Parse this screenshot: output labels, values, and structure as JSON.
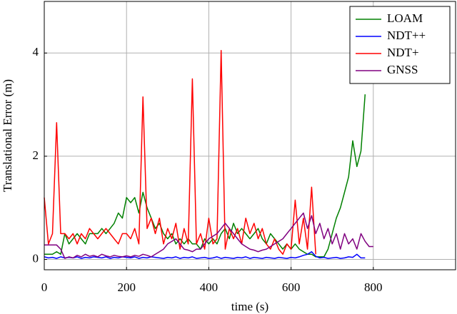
{
  "chart_data": {
    "type": "line",
    "x_label": "time (s)",
    "y_label": "Translational Error (m)",
    "x": [
      0,
      10,
      20,
      30,
      40,
      50,
      60,
      70,
      80,
      90,
      100,
      110,
      120,
      130,
      140,
      150,
      160,
      170,
      180,
      190,
      200,
      210,
      220,
      230,
      240,
      250,
      260,
      270,
      280,
      290,
      300,
      310,
      320,
      330,
      340,
      350,
      360,
      370,
      380,
      390,
      400,
      410,
      420,
      430,
      440,
      450,
      460,
      470,
      480,
      490,
      500,
      510,
      520,
      530,
      540,
      550,
      560,
      570,
      580,
      590,
      600,
      610,
      620,
      630,
      640,
      650,
      660,
      670,
      680,
      690,
      700,
      710,
      720,
      730,
      740,
      750,
      760,
      770,
      780,
      790,
      800
    ],
    "series": [
      {
        "name": "LOAM",
        "color": "#008000",
        "values": [
          0.1,
          0.1,
          0.1,
          0.15,
          0.1,
          0.5,
          0.3,
          0.4,
          0.5,
          0.4,
          0.3,
          0.5,
          0.5,
          0.5,
          0.6,
          0.5,
          0.6,
          0.7,
          0.9,
          0.8,
          1.2,
          1.1,
          1.2,
          0.9,
          1.3,
          1.0,
          0.8,
          0.6,
          0.7,
          0.5,
          0.4,
          0.5,
          0.3,
          0.4,
          0.3,
          0.4,
          0.3,
          0.3,
          0.2,
          0.4,
          0.3,
          0.4,
          0.3,
          0.5,
          0.6,
          0.4,
          0.7,
          0.5,
          0.6,
          0.5,
          0.4,
          0.5,
          0.6,
          0.4,
          0.3,
          0.5,
          0.4,
          0.3,
          0.2,
          0.3,
          0.2,
          0.3,
          0.2,
          0.15,
          0.1,
          0.1,
          0.05,
          0.05,
          0.05,
          0.2,
          0.5,
          0.8,
          1.0,
          1.3,
          1.6,
          2.3,
          1.8,
          2.1,
          3.2,
          null,
          null
        ]
      },
      {
        "name": "NDT++",
        "color": "#0000ff",
        "values": [
          0.05,
          0.03,
          0.04,
          0.02,
          0.05,
          0.03,
          0.04,
          0.03,
          0.05,
          0.02,
          0.04,
          0.03,
          0.05,
          0.04,
          0.03,
          0.05,
          0.02,
          0.04,
          0.03,
          0.05,
          0.04,
          0.03,
          0.05,
          0.02,
          0.04,
          0.03,
          0.05,
          0.04,
          0.03,
          0.02,
          0.04,
          0.03,
          0.05,
          0.02,
          0.04,
          0.03,
          0.05,
          0.02,
          0.03,
          0.04,
          0.02,
          0.03,
          0.05,
          0.02,
          0.04,
          0.03,
          0.02,
          0.04,
          0.03,
          0.05,
          0.02,
          0.04,
          0.03,
          0.02,
          0.04,
          0.03,
          0.02,
          0.04,
          0.03,
          0.02,
          0.04,
          0.03,
          0.05,
          0.08,
          0.1,
          0.15,
          0.06,
          0.03,
          0.04,
          0.02,
          0.03,
          0.04,
          0.02,
          0.03,
          0.05,
          0.04,
          0.1,
          0.03,
          0.03,
          null,
          null
        ]
      },
      {
        "name": "NDT+",
        "color": "#ff0000",
        "values": [
          1.2,
          0.3,
          0.5,
          2.65,
          0.5,
          0.5,
          0.4,
          0.5,
          0.3,
          0.5,
          0.4,
          0.6,
          0.5,
          0.4,
          0.5,
          0.6,
          0.5,
          0.4,
          0.3,
          0.5,
          0.5,
          0.4,
          0.6,
          0.3,
          3.15,
          0.6,
          0.8,
          0.5,
          0.8,
          0.3,
          0.6,
          0.4,
          0.7,
          0.2,
          0.6,
          0.3,
          3.5,
          0.3,
          0.5,
          0.2,
          0.8,
          0.3,
          0.4,
          4.05,
          0.2,
          0.6,
          0.4,
          0.6,
          0.3,
          0.8,
          0.5,
          0.7,
          0.4,
          0.6,
          0.3,
          0.2,
          0.4,
          0.2,
          0.1,
          0.3,
          0.2,
          1.15,
          0.3,
          0.8,
          0.2,
          1.4,
          0.1,
          null,
          null,
          null,
          null,
          null,
          null,
          null,
          null,
          null,
          null,
          null,
          null,
          null,
          null
        ]
      },
      {
        "name": "GNSS",
        "color": "#800080",
        "values": [
          0.28,
          0.28,
          0.28,
          0.28,
          0.2,
          0.02,
          0.05,
          0.03,
          0.08,
          0.05,
          0.1,
          0.06,
          0.08,
          0.05,
          0.1,
          0.07,
          0.05,
          0.08,
          0.06,
          0.05,
          0.07,
          0.05,
          0.08,
          0.06,
          0.1,
          0.08,
          0.05,
          0.1,
          0.15,
          0.2,
          0.3,
          0.35,
          0.4,
          0.3,
          0.2,
          0.18,
          0.15,
          0.2,
          0.2,
          0.3,
          0.4,
          0.45,
          0.5,
          0.6,
          0.7,
          0.6,
          0.5,
          0.4,
          0.3,
          0.25,
          0.2,
          0.18,
          0.15,
          0.18,
          0.2,
          0.25,
          0.3,
          0.35,
          0.4,
          0.5,
          0.6,
          0.7,
          0.8,
          0.9,
          0.6,
          0.85,
          0.5,
          0.7,
          0.4,
          0.6,
          0.3,
          0.5,
          0.2,
          0.5,
          0.3,
          0.4,
          0.2,
          0.5,
          0.35,
          0.25,
          0.25
        ]
      }
    ],
    "xlim": [
      0,
      1000
    ],
    "xticks": [
      0,
      200,
      400,
      600,
      800
    ],
    "ylim": [
      -0.2,
      5
    ],
    "yticks": [
      0,
      2,
      4
    ],
    "grid": true,
    "legend": "upper right"
  }
}
